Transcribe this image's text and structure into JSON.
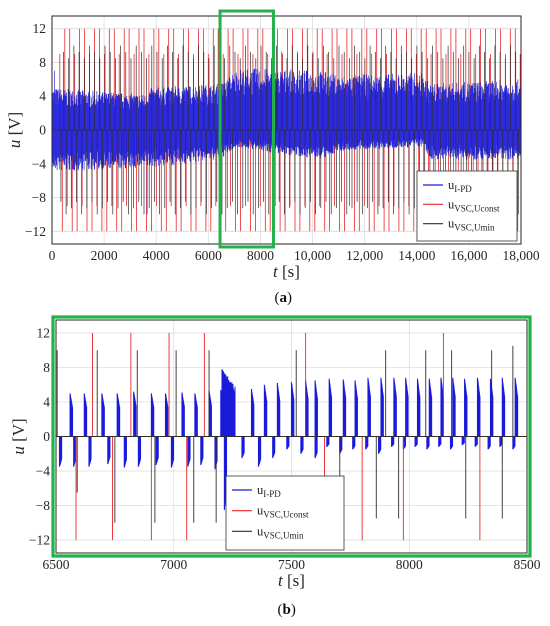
{
  "colors": {
    "i_pd": "#1a1adb",
    "vsc_uconst": "#e8272b",
    "vsc_umin": "#2e2e2e",
    "highlight": "#21b24a",
    "grid": "#dcdcdc"
  },
  "legend_labels": {
    "i_pd": {
      "main": "u",
      "sub": "I-PD"
    },
    "vsc_uconst": {
      "main": "u",
      "sub": "VSC,Uconst"
    },
    "vsc_umin": {
      "main": "u",
      "sub": "VSC,Umin"
    }
  },
  "chart_data": [
    {
      "type": "line",
      "caption": "a",
      "ylabel": {
        "var": "u",
        "unit": "[V]"
      },
      "xlabel": {
        "var": "t",
        "unit": "[s]"
      },
      "xlim": [
        0,
        18000
      ],
      "ylim": [
        -13.5,
        13.5
      ],
      "xticks": [
        0,
        2000,
        4000,
        6000,
        8000,
        10000,
        12000,
        14000,
        16000,
        18000
      ],
      "xtick_labels": [
        "0",
        "2000",
        "4000",
        "6000",
        "8000",
        "10,000",
        "12,000",
        "14,000",
        "16,000",
        "18,000"
      ],
      "yticks": [
        -12,
        -8,
        -4,
        0,
        4,
        8,
        12
      ],
      "grid": true,
      "legend_position": "lower-right",
      "highlight_box_x": [
        6450,
        8500
      ],
      "series": [
        {
          "key": "i_pd",
          "name": "u_I-PD",
          "envelope_t": [
            0,
            3600,
            3700,
            6400,
            6700,
            7100,
            8000,
            10400,
            11000,
            14200,
            14500,
            18000
          ],
          "upper_v": [
            5,
            4.2,
            5,
            5.5,
            6,
            7.3,
            7.3,
            7,
            6.5,
            6.8,
            5.5,
            6
          ],
          "lower_v": [
            -5,
            -4.5,
            -4.5,
            -3.5,
            -3,
            -2,
            -2.5,
            -3.5,
            -2.5,
            -2,
            -3.5,
            -3.5
          ]
        },
        {
          "key": "vsc_uconst",
          "name": "u_VSC,Uconst",
          "peaks": {
            "amplitude": 12,
            "approx_period_s": 95,
            "secondary_amplitude": 9
          }
        },
        {
          "key": "vsc_umin",
          "name": "u_VSC,Umin",
          "peaks": {
            "amplitude": 10,
            "approx_period_s": 95
          }
        }
      ]
    },
    {
      "type": "line",
      "caption": "b",
      "ylabel": {
        "var": "u",
        "unit": "[V]"
      },
      "xlabel": {
        "var": "t",
        "unit": "[s]"
      },
      "xlim": [
        6500,
        8500
      ],
      "ylim": [
        -13.5,
        13.5
      ],
      "xticks": [
        6500,
        7000,
        7500,
        8000,
        8500
      ],
      "xtick_labels": [
        "6500",
        "7000",
        "7500",
        "8000",
        "8500"
      ],
      "yticks": [
        -12,
        -8,
        -4,
        0,
        4,
        8,
        12
      ],
      "grid": true,
      "legend_position": "lower-left",
      "series": [
        {
          "key": "i_pd",
          "name": "u_I-PD",
          "positive_pulses": [
            {
              "t": 6560,
              "v": 5.0
            },
            {
              "t": 6620,
              "v": 5.0
            },
            {
              "t": 6695,
              "v": 5.0
            },
            {
              "t": 6760,
              "v": 5.0
            },
            {
              "t": 6830,
              "v": 5.2
            },
            {
              "t": 6905,
              "v": 5.0
            },
            {
              "t": 6965,
              "v": 5.0
            },
            {
              "t": 7035,
              "v": 5.1
            },
            {
              "t": 7090,
              "v": 5.0
            },
            {
              "t": 7150,
              "v": 5.3
            },
            {
              "t": 7200,
              "v": 5.4
            },
            {
              "t": 7330,
              "v": 5.5
            },
            {
              "t": 7385,
              "v": 6.0
            },
            {
              "t": 7440,
              "v": 6.2
            },
            {
              "t": 7500,
              "v": 6.3
            },
            {
              "t": 7560,
              "v": 6.5
            },
            {
              "t": 7600,
              "v": 6.5
            },
            {
              "t": 7660,
              "v": 6.7
            },
            {
              "t": 7720,
              "v": 6.6
            },
            {
              "t": 7770,
              "v": 6.5
            },
            {
              "t": 7825,
              "v": 6.8
            },
            {
              "t": 7880,
              "v": 6.8
            },
            {
              "t": 7935,
              "v": 6.8
            },
            {
              "t": 7985,
              "v": 6.8
            },
            {
              "t": 8035,
              "v": 6.7
            },
            {
              "t": 8085,
              "v": 6.7
            },
            {
              "t": 8135,
              "v": 6.8
            },
            {
              "t": 8185,
              "v": 6.8
            },
            {
              "t": 8235,
              "v": 6.7
            },
            {
              "t": 8290,
              "v": 6.8
            },
            {
              "t": 8345,
              "v": 6.7
            },
            {
              "t": 8395,
              "v": 6.8
            },
            {
              "t": 8450,
              "v": 6.8
            }
          ],
          "burst": {
            "t_start": 7205,
            "t_end": 7260,
            "v_max": 7.8,
            "v_min": 4.8
          },
          "negative_pulses": [
            {
              "t": 6515,
              "v": -3.5
            },
            {
              "t": 6575,
              "v": -3.5
            },
            {
              "t": 6640,
              "v": -3.5
            },
            {
              "t": 6720,
              "v": -3.2
            },
            {
              "t": 6790,
              "v": -3.6
            },
            {
              "t": 6850,
              "v": -3.5
            },
            {
              "t": 6925,
              "v": -3.3
            },
            {
              "t": 6990,
              "v": -3.6
            },
            {
              "t": 7060,
              "v": -3.5
            },
            {
              "t": 7115,
              "v": -3.3
            },
            {
              "t": 7175,
              "v": -3.8
            },
            {
              "t": 7215,
              "v": -8.5
            },
            {
              "t": 7290,
              "v": -2.5
            },
            {
              "t": 7360,
              "v": -3.5
            },
            {
              "t": 7420,
              "v": -2.5
            },
            {
              "t": 7480,
              "v": -1.5
            },
            {
              "t": 7540,
              "v": -2.0
            },
            {
              "t": 7600,
              "v": -2.5
            },
            {
              "t": 7650,
              "v": -1.2
            },
            {
              "t": 7705,
              "v": -2.0
            },
            {
              "t": 7760,
              "v": -1.5
            },
            {
              "t": 7815,
              "v": -1.5
            },
            {
              "t": 7870,
              "v": -2.0
            },
            {
              "t": 7925,
              "v": -1.2
            },
            {
              "t": 7975,
              "v": -1.5
            },
            {
              "t": 8025,
              "v": -1.2
            },
            {
              "t": 8075,
              "v": -1.5
            },
            {
              "t": 8125,
              "v": -1.2
            },
            {
              "t": 8175,
              "v": -1.5
            },
            {
              "t": 8225,
              "v": -1.0
            },
            {
              "t": 8280,
              "v": -1.2
            },
            {
              "t": 8335,
              "v": -1.5
            },
            {
              "t": 8385,
              "v": -1.2
            },
            {
              "t": 8440,
              "v": -1.5
            }
          ]
        },
        {
          "key": "vsc_uconst",
          "name": "u_VSC,Uconst",
          "spikes": [
            {
              "t": 6585,
              "v": -12
            },
            {
              "t": 6655,
              "v": 12
            },
            {
              "t": 6740,
              "v": -12
            },
            {
              "t": 6818,
              "v": 12
            },
            {
              "t": 6905,
              "v": -12
            },
            {
              "t": 6980,
              "v": 12
            },
            {
              "t": 7055,
              "v": -12
            },
            {
              "t": 7130,
              "v": 12
            },
            {
              "t": 7560,
              "v": 12
            },
            {
              "t": 7640,
              "v": -12
            },
            {
              "t": 7800,
              "v": -12
            },
            {
              "t": 7975,
              "v": -12
            },
            {
              "t": 8145,
              "v": 12
            },
            {
              "t": 8300,
              "v": -12
            }
          ]
        },
        {
          "key": "vsc_umin",
          "name": "u_VSC,Umin",
          "spikes": [
            {
              "t": 6505,
              "v": 10
            },
            {
              "t": 6590,
              "v": -6.5
            },
            {
              "t": 6675,
              "v": 10
            },
            {
              "t": 6750,
              "v": -10
            },
            {
              "t": 6845,
              "v": 10
            },
            {
              "t": 6920,
              "v": -10
            },
            {
              "t": 7010,
              "v": 10
            },
            {
              "t": 7085,
              "v": -10
            },
            {
              "t": 7150,
              "v": 10
            },
            {
              "t": 7180,
              "v": -10
            },
            {
              "t": 7520,
              "v": 10
            },
            {
              "t": 7705,
              "v": -9.5
            },
            {
              "t": 7860,
              "v": -9.5
            },
            {
              "t": 7900,
              "v": 10
            },
            {
              "t": 7955,
              "v": -9.5
            },
            {
              "t": 8070,
              "v": 10
            },
            {
              "t": 8180,
              "v": 10
            },
            {
              "t": 8240,
              "v": -9.5
            },
            {
              "t": 8350,
              "v": 10
            },
            {
              "t": 8395,
              "v": -9.5
            },
            {
              "t": 8440,
              "v": 10.5
            }
          ]
        }
      ]
    }
  ]
}
